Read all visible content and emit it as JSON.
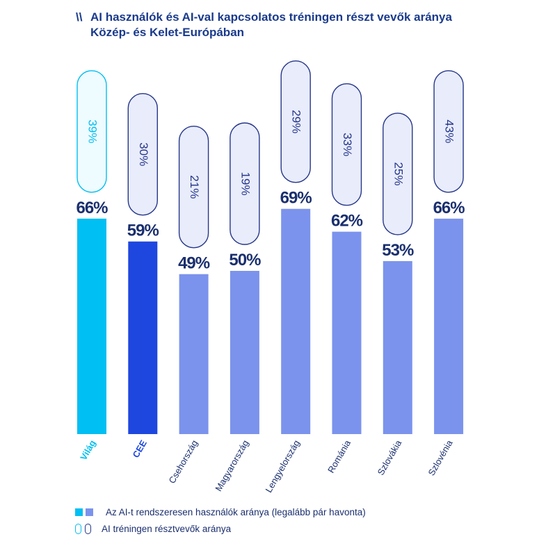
{
  "title": {
    "mark": "\\\\",
    "line1": "AI használók és AI-val kapcsolatos tréningen részt vevők aránya",
    "line2": "Közép- és Kelet-Európában"
  },
  "colors": {
    "world": "#00bff2",
    "cee": "#1e47e0",
    "country": "#7b93ec",
    "label_dark": "#1a2f6e",
    "pill_fill": "#e8ecfb",
    "pill_border_dark": "#26368a",
    "world_pill_fill": "#eefbff"
  },
  "chart_data": {
    "type": "bar",
    "categories": [
      "Világ",
      "CEE",
      "Csehország",
      "Magyarország",
      "Lengyelország",
      "Románia",
      "Szlovákia",
      "Szlovénia"
    ],
    "series": [
      {
        "name": "Az AI-t rendszeresen használók aránya (legalább pár havonta)",
        "values": [
          66,
          59,
          49,
          50,
          69,
          62,
          53,
          66
        ],
        "labels": [
          "66%",
          "59%",
          "49%",
          "50%",
          "69%",
          "62%",
          "53%",
          "66%"
        ]
      },
      {
        "name": "AI tréningen résztvevők aránya",
        "values": [
          39,
          30,
          21,
          19,
          29,
          33,
          25,
          43
        ],
        "labels": [
          "39%",
          "30%",
          "21%",
          "19%",
          "29%",
          "33%",
          "25%",
          "43%"
        ]
      }
    ],
    "ylim": [
      0,
      100
    ]
  },
  "legend": {
    "items": [
      {
        "label": "Az AI-t rendszeresen használók aránya (legalább pár havonta)"
      },
      {
        "label": "AI tréningen résztvevők aránya"
      }
    ]
  }
}
